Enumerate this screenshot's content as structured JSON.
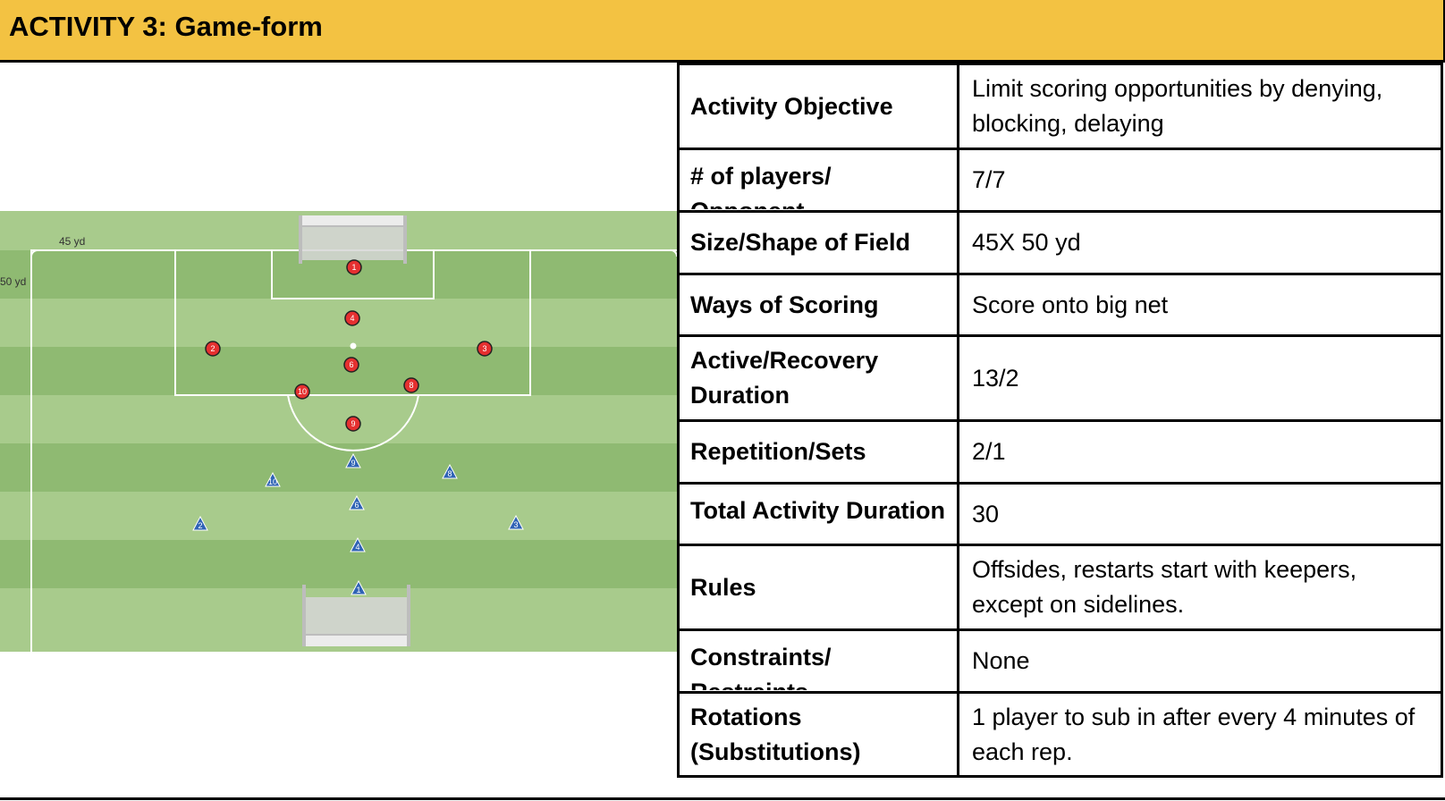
{
  "header": {
    "title": "ACTIVITY 3: Game-form"
  },
  "diagram": {
    "width_label": "45 yd",
    "length_label": "50 yd",
    "red_team": [
      "1",
      "4",
      "2",
      "6",
      "3",
      "10",
      "8",
      "9"
    ],
    "blue_team": [
      "9",
      "8",
      "10",
      "6",
      "2",
      "3",
      "4",
      "1"
    ],
    "colors": {
      "header": "#f3c242",
      "grass_light": "#a8cb8c",
      "grass_dark": "#8fba72",
      "red": "#e53030",
      "blue": "#2f63b5"
    }
  },
  "table": {
    "rows": [
      {
        "label": "Activity Objective",
        "value": " Limit scoring opportunities by denying, blocking, delaying"
      },
      {
        "label": "# of players/ Opponent",
        "value": "7/7"
      },
      {
        "label": "Size/Shape of Field",
        "value": "45X 50 yd"
      },
      {
        "label": "Ways of Scoring",
        "value": "Score onto big net"
      },
      {
        "label": "Active/Recovery Duration",
        "value": "13/2"
      },
      {
        "label": "Repetition/Sets",
        "value": "2/1"
      },
      {
        "label": "Total Activity Duration",
        "value": "30"
      },
      {
        "label": "Rules",
        "value": "Offsides, restarts start with keepers, except on sidelines."
      },
      {
        "label": "Constraints/ Restraints",
        "value": "None"
      },
      {
        "label": "Rotations (Substitutions)",
        "value": "1 player to sub in after every 4 minutes of each rep."
      }
    ]
  }
}
